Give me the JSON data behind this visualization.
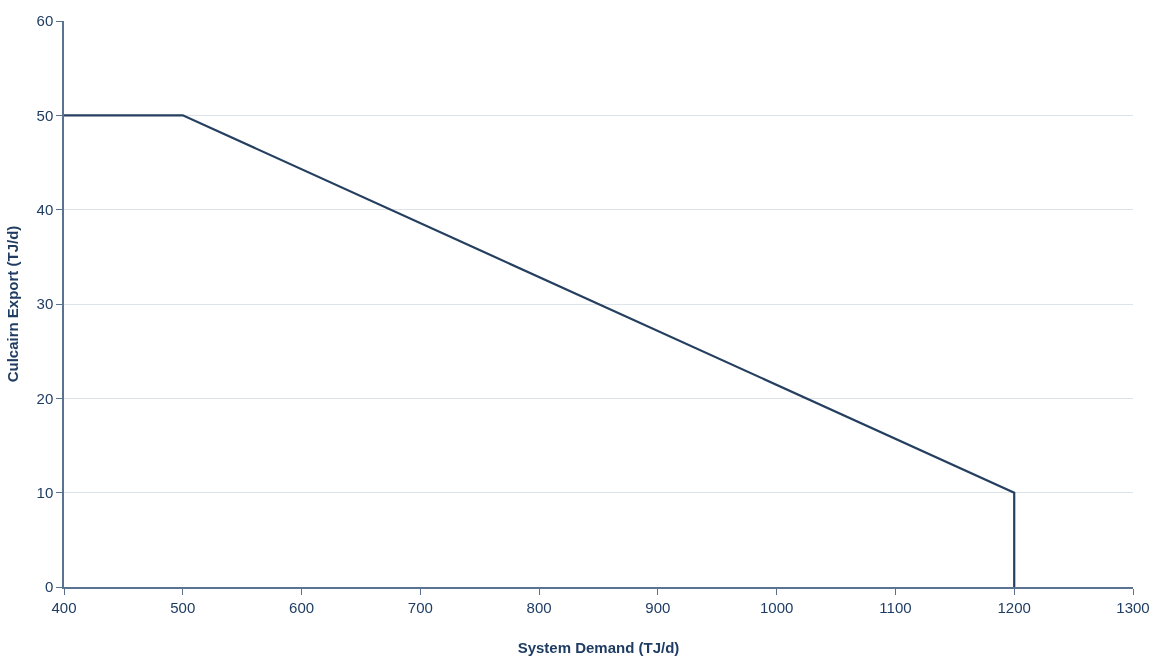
{
  "chart_data": {
    "type": "line",
    "xlabel": "System Demand (TJ/d)",
    "ylabel": "Culcairn Export (TJ/d)",
    "x": [
      400,
      500,
      1200,
      1200
    ],
    "series": [
      {
        "color": "#243f60",
        "values": [
          50,
          50,
          10,
          0
        ]
      }
    ],
    "xlim": [
      400,
      1300
    ],
    "xticks": [
      400,
      500,
      600,
      700,
      800,
      900,
      1000,
      1100,
      1200,
      1300
    ],
    "ylim": [
      0,
      60
    ],
    "yticks": [
      0,
      10,
      20,
      30,
      40,
      50,
      60
    ],
    "grid": "y",
    "marker": "none",
    "line_style": "solid"
  }
}
